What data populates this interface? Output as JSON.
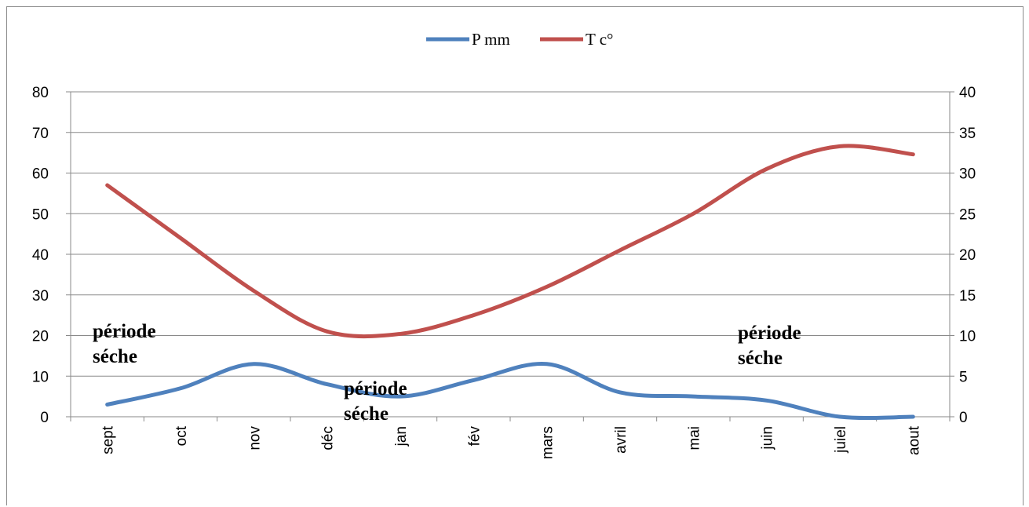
{
  "chart_data": {
    "type": "line",
    "categories": [
      "sept",
      "oct",
      "nov",
      "déc",
      "jan",
      "fév",
      "mars",
      "avril",
      "mai",
      "juin",
      "juiel",
      "aout"
    ],
    "series": [
      {
        "name": "P mm",
        "axis": "left",
        "color": "#4f81bd",
        "values": [
          3,
          7,
          13,
          8,
          5,
          9,
          13,
          6,
          5,
          4,
          0,
          0
        ]
      },
      {
        "name": "T c°",
        "axis": "right",
        "color": "#c0504d",
        "values": [
          28.5,
          22,
          15.5,
          10.5,
          10.2,
          12.5,
          16,
          20.5,
          25,
          30.5,
          33.3,
          32.3
        ]
      }
    ],
    "y_left": {
      "min": 0,
      "max": 80,
      "step": 10,
      "ticks": [
        "0",
        "10",
        "20",
        "30",
        "40",
        "50",
        "60",
        "70",
        "80"
      ]
    },
    "y_right": {
      "min": 0,
      "max": 40,
      "step": 5,
      "ticks": [
        "0",
        "5",
        "10",
        "15",
        "20",
        "25",
        "30",
        "35",
        "40"
      ]
    },
    "grid": true,
    "legend_position": "top-center",
    "annotations": [
      {
        "text": [
          "période",
          "séche"
        ],
        "anchor": "sept"
      },
      {
        "text": [
          "période",
          "séche"
        ],
        "anchor": "déc-jan"
      },
      {
        "text": [
          "période",
          "séche"
        ],
        "anchor": "juin"
      }
    ]
  }
}
